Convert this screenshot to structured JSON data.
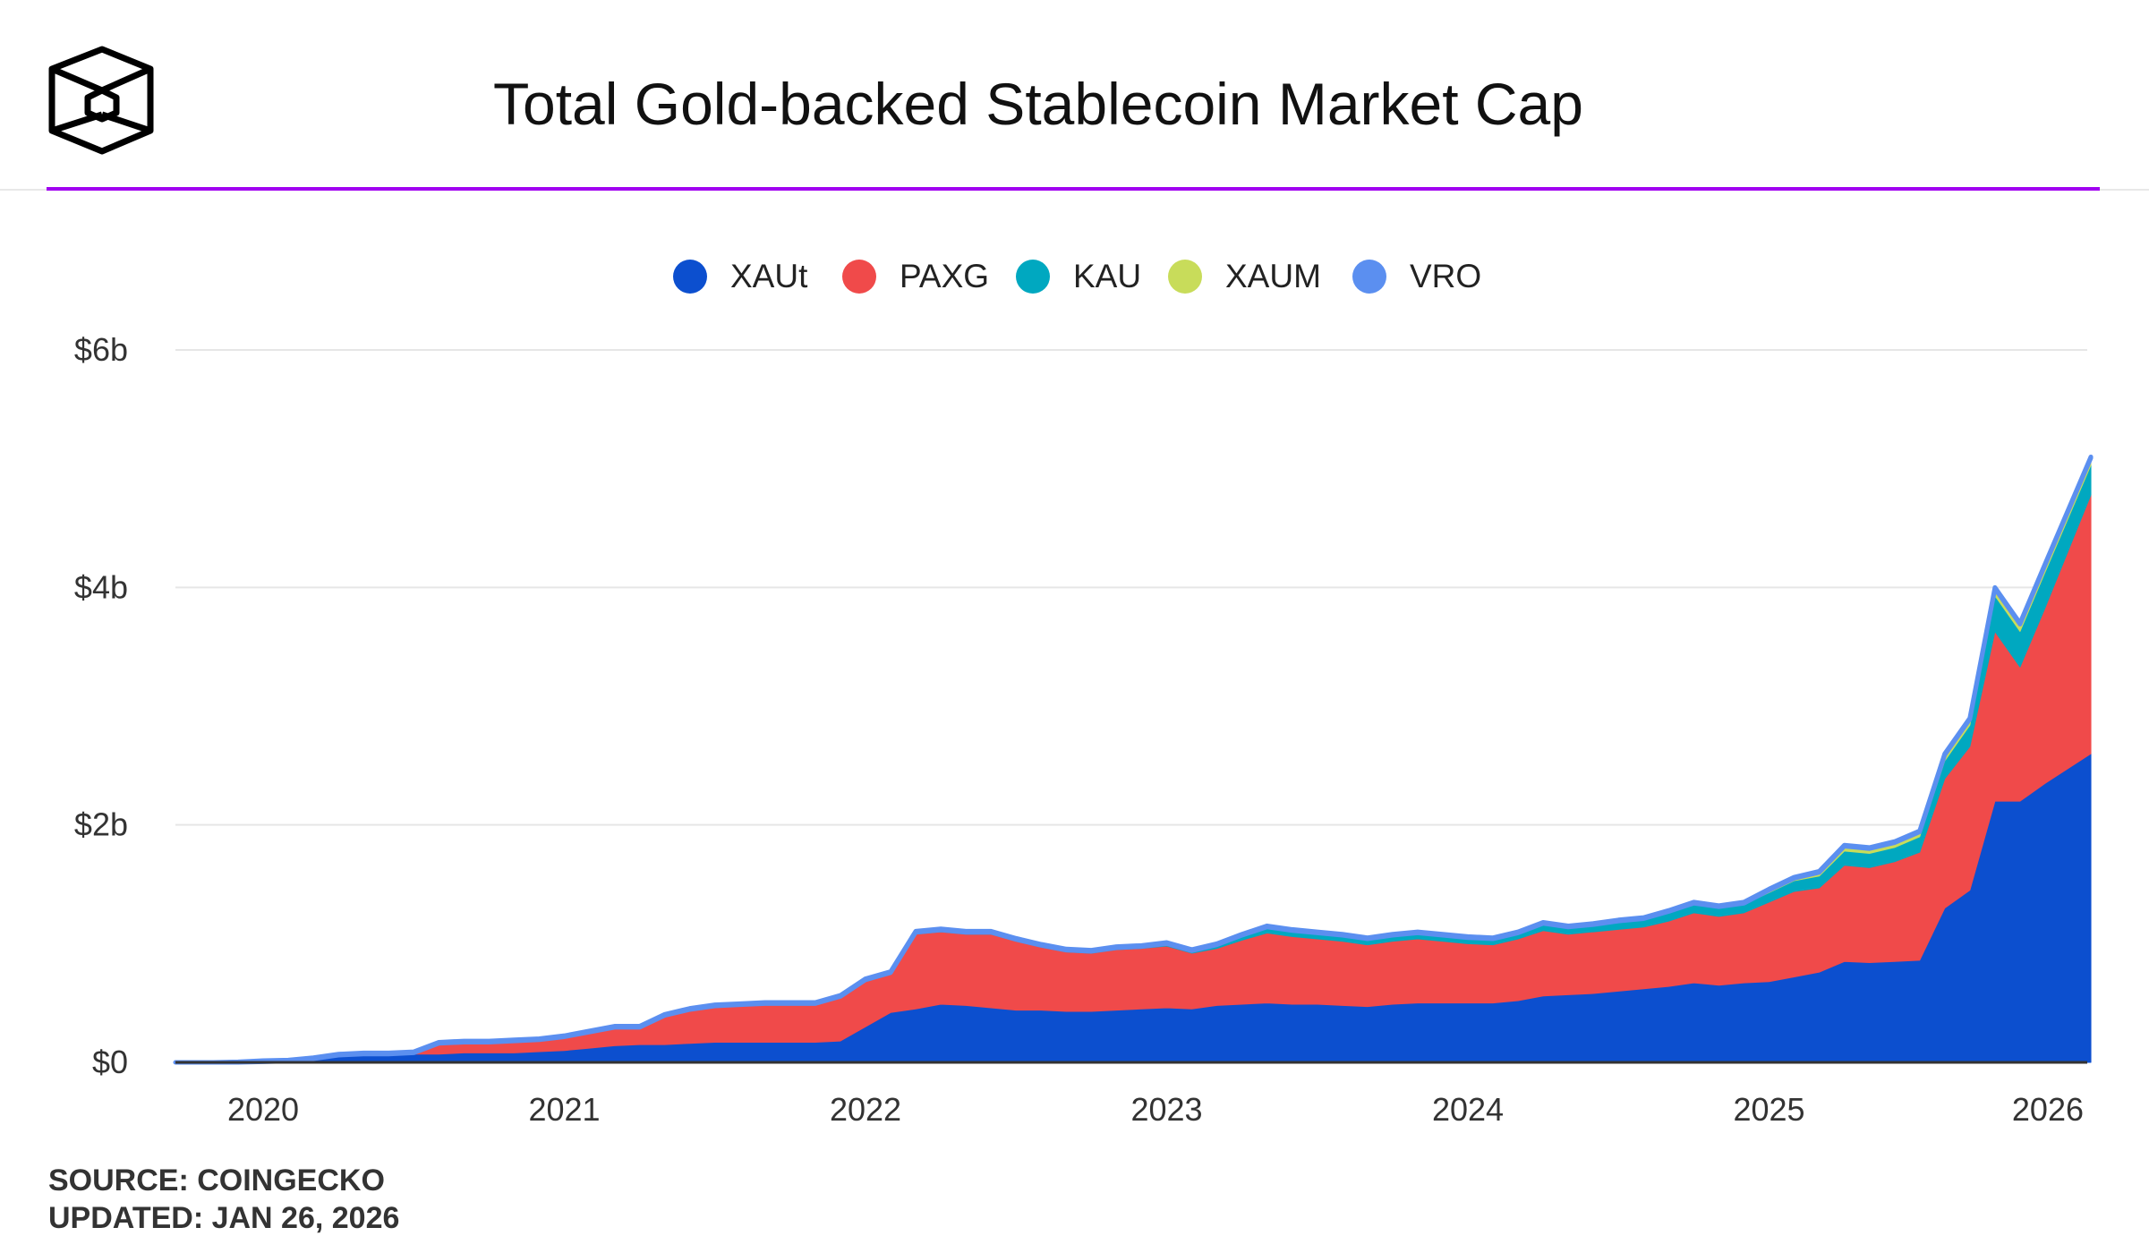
{
  "title": "Total Gold-backed Stablecoin Market Cap",
  "footer": {
    "source": "SOURCE: COINGECKO",
    "updated": "UPDATED: JAN 26, 2026"
  },
  "chart_data": {
    "type": "area",
    "stacked": true,
    "title": "Total Gold-backed Stablecoin Market Cap",
    "xlabel": "",
    "ylabel": "",
    "unit": "$ billions",
    "ylim": [
      0,
      6
    ],
    "yticks": [
      {
        "value": 0,
        "label": "$0"
      },
      {
        "value": 2,
        "label": "$2b"
      },
      {
        "value": 4,
        "label": "$4b"
      },
      {
        "value": 6,
        "label": "$6b"
      }
    ],
    "xticks": [
      "2020",
      "2021",
      "2022",
      "2023",
      "2024",
      "2025",
      "2026"
    ],
    "grid": true,
    "legend": "top-center",
    "x": [
      "2019-09",
      "2019-10",
      "2019-11",
      "2019-12",
      "2020-01",
      "2020-02",
      "2020-03",
      "2020-04",
      "2020-05",
      "2020-06",
      "2020-07",
      "2020-08",
      "2020-09",
      "2020-10",
      "2020-11",
      "2020-12",
      "2021-01",
      "2021-02",
      "2021-03",
      "2021-04",
      "2021-05",
      "2021-06",
      "2021-07",
      "2021-08",
      "2021-09",
      "2021-10",
      "2021-11",
      "2021-12",
      "2022-01",
      "2022-02",
      "2022-03",
      "2022-04",
      "2022-05",
      "2022-06",
      "2022-07",
      "2022-08",
      "2022-09",
      "2022-10",
      "2022-11",
      "2022-12",
      "2023-01",
      "2023-02",
      "2023-03",
      "2023-04",
      "2023-05",
      "2023-06",
      "2023-07",
      "2023-08",
      "2023-09",
      "2023-10",
      "2023-11",
      "2023-12",
      "2024-01",
      "2024-02",
      "2024-03",
      "2024-04",
      "2024-05",
      "2024-06",
      "2024-07",
      "2024-08",
      "2024-09",
      "2024-10",
      "2024-11",
      "2024-12",
      "2025-01",
      "2025-02",
      "2025-03",
      "2025-04",
      "2025-05",
      "2025-06",
      "2025-07",
      "2025-08",
      "2025-09",
      "2025-10",
      "2025-11",
      "2025-12",
      "2026-01-26"
    ],
    "series": [
      {
        "name": "XAUt",
        "color": "#0c4fcf",
        "values": [
          0,
          0,
          0,
          0,
          0.005,
          0.01,
          0.03,
          0.06,
          0.07,
          0.07,
          0.07,
          0.07,
          0.08,
          0.08,
          0.08,
          0.09,
          0.1,
          0.12,
          0.14,
          0.15,
          0.15,
          0.16,
          0.17,
          0.17,
          0.17,
          0.17,
          0.17,
          0.18,
          0.3,
          0.42,
          0.45,
          0.49,
          0.48,
          0.46,
          0.44,
          0.44,
          0.43,
          0.43,
          0.44,
          0.45,
          0.46,
          0.45,
          0.48,
          0.49,
          0.5,
          0.49,
          0.49,
          0.48,
          0.47,
          0.49,
          0.5,
          0.5,
          0.5,
          0.5,
          0.52,
          0.56,
          0.57,
          0.58,
          0.6,
          0.62,
          0.64,
          0.67,
          0.65,
          0.67,
          0.68,
          0.72,
          0.76,
          0.85,
          0.84,
          0.85,
          0.86,
          1.3,
          1.45,
          2.2,
          2.2,
          2.35,
          2.6
        ]
      },
      {
        "name": "PAXG",
        "color": "#f04a4a",
        "values": [
          0,
          0,
          0,
          0,
          0,
          0,
          0,
          0,
          0,
          0,
          0.01,
          0.09,
          0.09,
          0.09,
          0.1,
          0.1,
          0.11,
          0.13,
          0.15,
          0.14,
          0.24,
          0.28,
          0.3,
          0.31,
          0.32,
          0.32,
          0.32,
          0.37,
          0.38,
          0.32,
          0.63,
          0.61,
          0.6,
          0.62,
          0.58,
          0.53,
          0.5,
          0.49,
          0.51,
          0.51,
          0.52,
          0.47,
          0.48,
          0.54,
          0.59,
          0.57,
          0.55,
          0.54,
          0.52,
          0.53,
          0.54,
          0.52,
          0.5,
          0.49,
          0.52,
          0.55,
          0.51,
          0.52,
          0.52,
          0.52,
          0.55,
          0.59,
          0.58,
          0.59,
          0.67,
          0.72,
          0.71,
          0.81,
          0.8,
          0.84,
          0.91,
          1.09,
          1.21,
          1.43,
          1.13,
          1.48,
          2.18
        ]
      },
      {
        "name": "KAU",
        "color": "#00a8c0",
        "values": [
          0,
          0,
          0,
          0,
          0,
          0,
          0,
          0,
          0,
          0,
          0,
          0,
          0,
          0,
          0,
          0,
          0.005,
          0.005,
          0.005,
          0.005,
          0.005,
          0.005,
          0.005,
          0.005,
          0.005,
          0.005,
          0.005,
          0.005,
          0.015,
          0.015,
          0.015,
          0.015,
          0.015,
          0.015,
          0.015,
          0.015,
          0.015,
          0.015,
          0.015,
          0.015,
          0.02,
          0.02,
          0.03,
          0.04,
          0.05,
          0.05,
          0.05,
          0.05,
          0.05,
          0.05,
          0.05,
          0.05,
          0.05,
          0.05,
          0.05,
          0.06,
          0.06,
          0.06,
          0.06,
          0.06,
          0.07,
          0.07,
          0.07,
          0.07,
          0.08,
          0.09,
          0.1,
          0.12,
          0.12,
          0.12,
          0.13,
          0.15,
          0.18,
          0.3,
          0.3,
          0.3,
          0.25
        ]
      },
      {
        "name": "XAUM",
        "color": "#c8dc5a",
        "values": [
          0,
          0,
          0,
          0,
          0,
          0,
          0,
          0,
          0,
          0,
          0,
          0,
          0,
          0,
          0,
          0,
          0,
          0,
          0,
          0,
          0,
          0,
          0,
          0,
          0,
          0,
          0,
          0,
          0,
          0,
          0,
          0,
          0,
          0,
          0,
          0,
          0,
          0,
          0,
          0,
          0,
          0,
          0,
          0,
          0,
          0,
          0,
          0,
          0,
          0,
          0,
          0,
          0,
          0,
          0,
          0,
          0,
          0,
          0.01,
          0.01,
          0.01,
          0.01,
          0.01,
          0.01,
          0.02,
          0.02,
          0.03,
          0.04,
          0.04,
          0.04,
          0.04,
          0.05,
          0.05,
          0.06,
          0.06,
          0.06,
          0.06
        ]
      },
      {
        "name": "VRO",
        "color": "#5b8ff0",
        "values": [
          0,
          0,
          0,
          0.005,
          0.01,
          0.01,
          0.01,
          0.01,
          0.01,
          0.01,
          0.01,
          0.01,
          0.01,
          0.01,
          0.01,
          0.01,
          0.01,
          0.01,
          0.01,
          0.01,
          0.01,
          0.01,
          0.01,
          0.01,
          0.01,
          0.01,
          0.01,
          0.01,
          0.01,
          0.01,
          0.01,
          0.01,
          0.01,
          0.01,
          0.01,
          0.01,
          0.01,
          0.01,
          0.01,
          0.01,
          0.01,
          0.01,
          0.01,
          0.01,
          0.01,
          0.01,
          0.01,
          0.01,
          0.01,
          0.01,
          0.01,
          0.01,
          0.01,
          0.01,
          0.01,
          0.01,
          0.01,
          0.01,
          0.01,
          0.01,
          0.01,
          0.01,
          0.01,
          0.01,
          0.01,
          0.01,
          0.01,
          0.01,
          0.01,
          0.01,
          0.01,
          0.01,
          0.01,
          0.01,
          0.01,
          0.01,
          0.01
        ]
      }
    ]
  }
}
